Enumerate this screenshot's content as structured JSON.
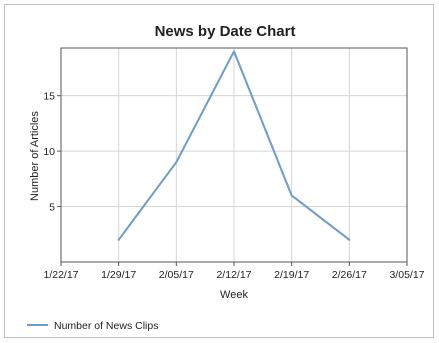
{
  "chart_data": {
    "type": "line",
    "title": "News by Date Chart",
    "xlabel": "Week",
    "ylabel": "Number of Articles",
    "x_ticks": [
      "1/22/17",
      "1/29/17",
      "2/05/17",
      "2/12/17",
      "2/19/17",
      "2/26/17",
      "3/05/17"
    ],
    "y_ticks": [
      5,
      10,
      15
    ],
    "ylim": [
      0,
      19.3
    ],
    "grid": true,
    "legend_position": "bottom-left",
    "series": [
      {
        "name": "Number of News Clips",
        "color": "#6a9ccc",
        "x": [
          "1/29/17",
          "2/05/17",
          "2/12/17",
          "2/19/17",
          "2/26/17"
        ],
        "values": [
          2,
          9,
          19,
          6,
          2
        ]
      }
    ]
  }
}
